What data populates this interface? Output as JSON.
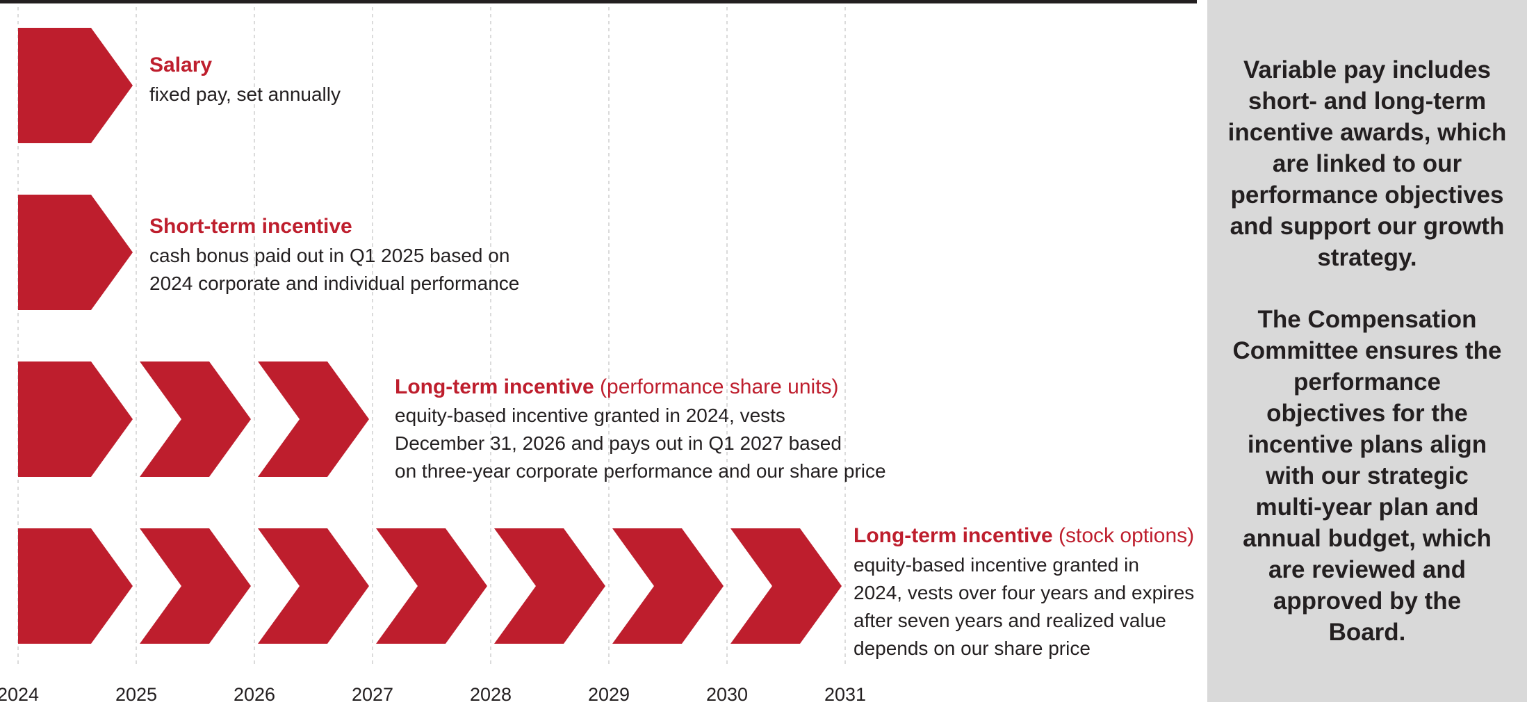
{
  "colors": {
    "accent": "#be1e2d",
    "text": "#231f20",
    "sidebar_bg": "#d9d9d9",
    "grid": "#cfcfcf"
  },
  "axis": {
    "years": [
      "2024",
      "2025",
      "2026",
      "2027",
      "2028",
      "2029",
      "2030",
      "2031"
    ]
  },
  "rows": [
    {
      "id": "salary",
      "title": "Salary",
      "title_sub": "",
      "start_year": 2024,
      "segments": 1,
      "desc_lines": [
        "fixed pay, set annually"
      ]
    },
    {
      "id": "sti",
      "title": "Short-term incentive",
      "title_sub": "",
      "start_year": 2024,
      "segments": 1,
      "desc_lines": [
        "cash bonus paid out in Q1 2025 based on",
        "2024 corporate and individual performance"
      ]
    },
    {
      "id": "psu",
      "title": "Long-term incentive",
      "title_sub": "(performance share units)",
      "start_year": 2024,
      "segments": 3,
      "desc_lines": [
        "equity-based incentive granted in 2024, vests",
        "December 31, 2026 and pays out in Q1 2027 based",
        "on three-year corporate performance and our share price"
      ]
    },
    {
      "id": "options",
      "title": "Long-term incentive",
      "title_sub": "(stock options)",
      "start_year": 2024,
      "segments": 7,
      "desc_lines": [
        "equity-based incentive granted in",
        "2024, vests over four years and expires",
        "after seven years and realized value",
        "depends on our share price"
      ]
    }
  ],
  "sidebar": {
    "paragraph1": [
      "Variable pay includes",
      "short- and long-term",
      "incentive awards, which",
      "are linked to our",
      "performance objectives",
      "and support our growth",
      "strategy."
    ],
    "paragraph2": [
      "The Compensation",
      "Committee ensures the",
      "performance",
      "objectives for the",
      "incentive plans align",
      "with our strategic",
      "multi-year plan and",
      "annual budget, which",
      "are reviewed and",
      "approved by the",
      "Board."
    ]
  }
}
